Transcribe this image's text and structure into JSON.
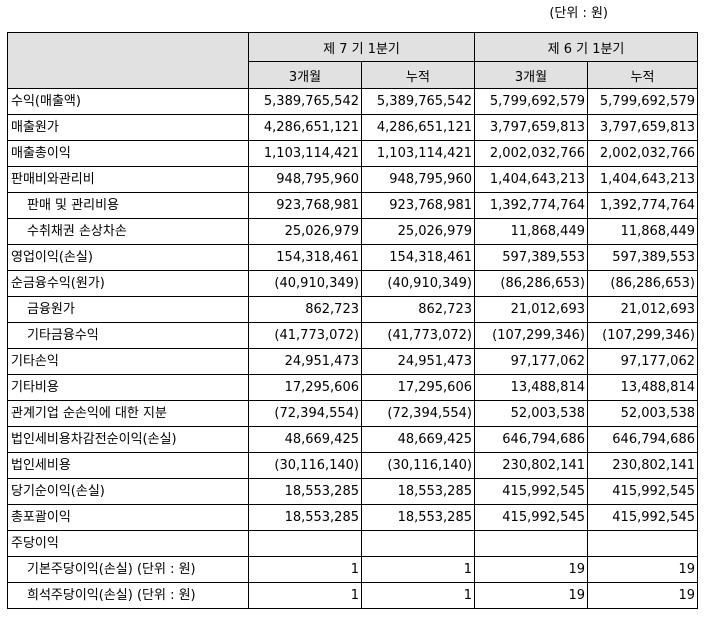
{
  "unit_note": "(단위 : 원)",
  "header": {
    "periods": [
      "제 7 기 1분기",
      "제 6 기 1분기"
    ],
    "subcols": [
      "3개월",
      "누적",
      "3개월",
      "누적"
    ]
  },
  "rows": [
    {
      "label": "수익(매출액)",
      "indent": false,
      "values": [
        "5,389,765,542",
        "5,389,765,542",
        "5,799,692,579",
        "5,799,692,579"
      ]
    },
    {
      "label": "매출원가",
      "indent": false,
      "values": [
        "4,286,651,121",
        "4,286,651,121",
        "3,797,659,813",
        "3,797,659,813"
      ]
    },
    {
      "label": "매출총이익",
      "indent": false,
      "values": [
        "1,103,114,421",
        "1,103,114,421",
        "2,002,032,766",
        "2,002,032,766"
      ]
    },
    {
      "label": "판매비와관리비",
      "indent": false,
      "values": [
        "948,795,960",
        "948,795,960",
        "1,404,643,213",
        "1,404,643,213"
      ]
    },
    {
      "label": "판매 및 관리비용",
      "indent": true,
      "values": [
        "923,768,981",
        "923,768,981",
        "1,392,774,764",
        "1,392,774,764"
      ]
    },
    {
      "label": "수취채권 손상차손",
      "indent": true,
      "values": [
        "25,026,979",
        "25,026,979",
        "11,868,449",
        "11,868,449"
      ]
    },
    {
      "label": "영업이익(손실)",
      "indent": false,
      "values": [
        "154,318,461",
        "154,318,461",
        "597,389,553",
        "597,389,553"
      ]
    },
    {
      "label": "순금융수익(원가)",
      "indent": false,
      "values": [
        "(40,910,349)",
        "(40,910,349)",
        "(86,286,653)",
        "(86,286,653)"
      ]
    },
    {
      "label": "금융원가",
      "indent": true,
      "values": [
        "862,723",
        "862,723",
        "21,012,693",
        "21,012,693"
      ]
    },
    {
      "label": "기타금융수익",
      "indent": true,
      "values": [
        "(41,773,072)",
        "(41,773,072)",
        "(107,299,346)",
        "(107,299,346)"
      ]
    },
    {
      "label": "기타손익",
      "indent": false,
      "values": [
        "24,951,473",
        "24,951,473",
        "97,177,062",
        "97,177,062"
      ]
    },
    {
      "label": "기타비용",
      "indent": false,
      "values": [
        "17,295,606",
        "17,295,606",
        "13,488,814",
        "13,488,814"
      ]
    },
    {
      "label": "관계기업 순손익에 대한 지분",
      "indent": false,
      "values": [
        "(72,394,554)",
        "(72,394,554)",
        "52,003,538",
        "52,003,538"
      ]
    },
    {
      "label": "법인세비용차감전순이익(손실)",
      "indent": false,
      "values": [
        "48,669,425",
        "48,669,425",
        "646,794,686",
        "646,794,686"
      ]
    },
    {
      "label": "법인세비용",
      "indent": false,
      "values": [
        "(30,116,140)",
        "(30,116,140)",
        "230,802,141",
        "230,802,141"
      ]
    },
    {
      "label": "당기순이익(손실)",
      "indent": false,
      "values": [
        "18,553,285",
        "18,553,285",
        "415,992,545",
        "415,992,545"
      ]
    },
    {
      "label": "총포괄이익",
      "indent": false,
      "values": [
        "18,553,285",
        "18,553,285",
        "415,992,545",
        "415,992,545"
      ]
    },
    {
      "label": "주당이익",
      "indent": false,
      "values": [
        "",
        "",
        "",
        ""
      ]
    },
    {
      "label": "기본주당이익(손실) (단위 : 원)",
      "indent": true,
      "values": [
        "1",
        "1",
        "19",
        "19"
      ]
    },
    {
      "label": "희석주당이익(손실) (단위 : 원)",
      "indent": true,
      "values": [
        "1",
        "1",
        "19",
        "19"
      ]
    }
  ]
}
